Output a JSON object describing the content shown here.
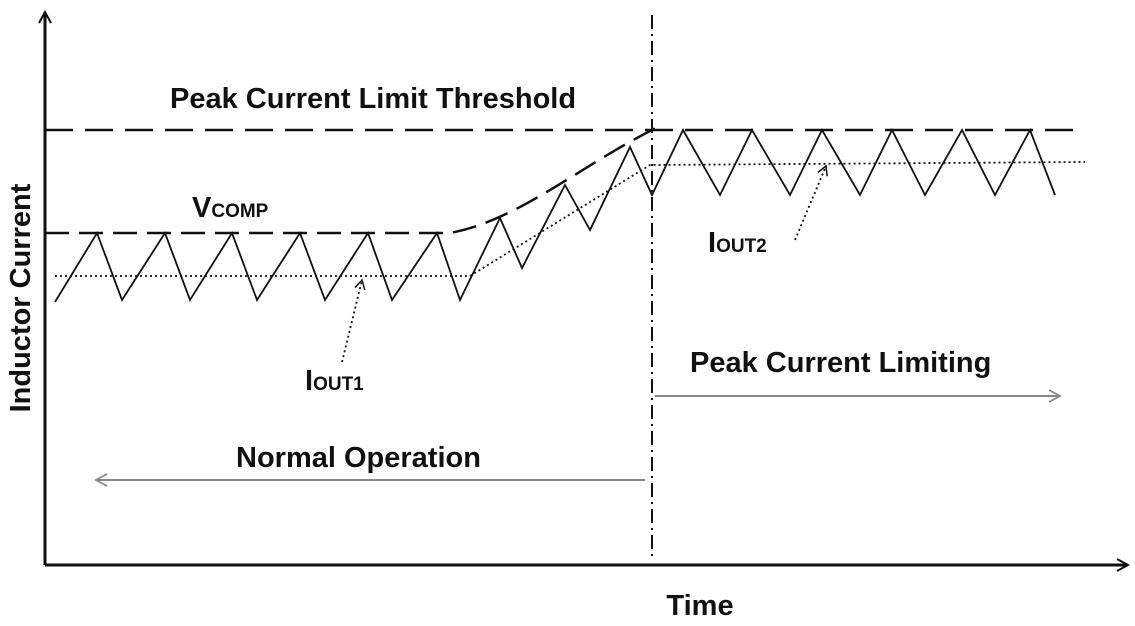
{
  "axes": {
    "y_label": "Inductor Current",
    "x_label": "Time"
  },
  "labels": {
    "threshold": "Peak Current Limit Threshold",
    "vcomp": {
      "main": "V",
      "sub": "COMP"
    },
    "iout1": {
      "main": "I",
      "sub": "OUT1"
    },
    "iout2": {
      "main": "I",
      "sub": "OUT2"
    },
    "normal": "Normal Operation",
    "limiting": "Peak Current Limiting"
  }
}
